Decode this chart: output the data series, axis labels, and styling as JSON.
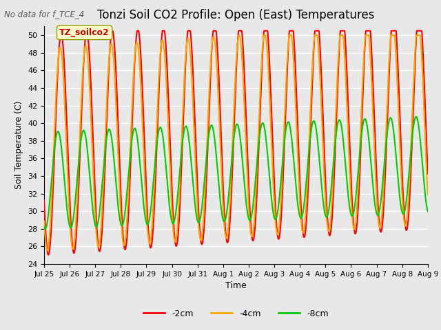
{
  "title": "Tonzi Soil CO2 Profile: Open (East) Temperatures",
  "top_left_text": "No data for f_TCE_4",
  "annotation_text": "TZ_soilco2",
  "ylabel": "Soil Temperature (C)",
  "xlabel": "Time",
  "ylim": [
    24,
    51
  ],
  "yticks": [
    24,
    26,
    28,
    30,
    32,
    34,
    36,
    38,
    40,
    42,
    44,
    46,
    48,
    50
  ],
  "xtick_labels": [
    "Jul 25",
    "Jul 26",
    "Jul 27",
    "Jul 28",
    "Jul 29",
    "Jul 30",
    "Jul 31",
    "Aug 1",
    "Aug 2",
    "Aug 3",
    "Aug 4",
    "Aug 5",
    "Aug 6",
    "Aug 7",
    "Aug 8",
    "Aug 9"
  ],
  "colors": {
    "neg2cm": "#ff0000",
    "neg4cm": "#ffa500",
    "neg8cm": "#00cc00"
  },
  "legend_labels": [
    "-2cm",
    "-4cm",
    "-8cm"
  ],
  "bg_color": "#e8e8e8",
  "plot_bg_color": "#e8e8e8",
  "grid_color": "#ffffff",
  "line_width": 1.5,
  "n_days": 15,
  "pts_per_day": 96
}
